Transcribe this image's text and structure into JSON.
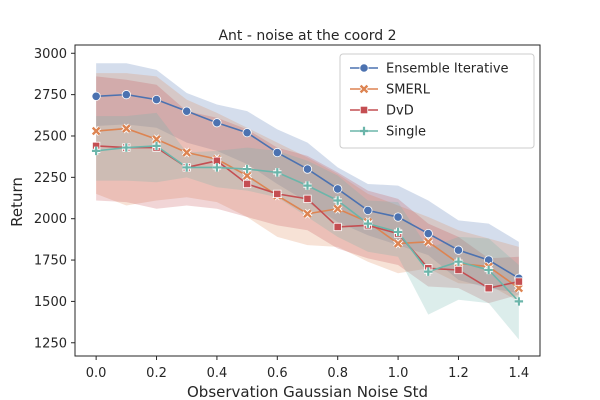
{
  "chart_data": {
    "type": "line",
    "title": "Ant - noise at the coord 2",
    "xlabel": "Observation Gaussian Noise Std",
    "ylabel": "Return",
    "xlim": [
      -0.07,
      1.47
    ],
    "ylim": [
      1170,
      3050
    ],
    "xticks": [
      0.0,
      0.2,
      0.4,
      0.6,
      0.8,
      1.0,
      1.2,
      1.4
    ],
    "yticks": [
      1250,
      1500,
      1750,
      2000,
      2250,
      2500,
      2750,
      3000
    ],
    "grid": false,
    "legend_position": "top-right",
    "x": [
      0.0,
      0.1,
      0.2,
      0.3,
      0.4,
      0.5,
      0.6,
      0.7,
      0.8,
      0.9,
      1.0,
      1.1,
      1.2,
      1.3,
      1.4
    ],
    "series": [
      {
        "name": "Ensemble Iterative",
        "color": "#4c72b0",
        "marker": "circle",
        "values": [
          2740,
          2750,
          2720,
          2650,
          2580,
          2520,
          2400,
          2300,
          2180,
          2050,
          2010,
          1910,
          1810,
          1750,
          1640
        ],
        "lower": [
          2560,
          2570,
          2550,
          2460,
          2410,
          2330,
          2210,
          2100,
          1980,
          1900,
          1840,
          1780,
          1630,
          1580,
          1550
        ],
        "upper": [
          2940,
          2940,
          2900,
          2760,
          2690,
          2650,
          2540,
          2460,
          2310,
          2210,
          2200,
          2110,
          1990,
          1970,
          1860
        ]
      },
      {
        "name": "SMERL",
        "color": "#dd8452",
        "marker": "x",
        "values": [
          2530,
          2545,
          2480,
          2400,
          2360,
          2260,
          2140,
          2030,
          2060,
          1980,
          1850,
          1860,
          1730,
          1710,
          1580
        ],
        "lower": [
          2150,
          2080,
          2110,
          2130,
          2100,
          2010,
          1890,
          1840,
          1830,
          1740,
          1670,
          1700,
          1610,
          1600,
          1500
        ],
        "upper": [
          2880,
          2880,
          2860,
          2720,
          2640,
          2550,
          2460,
          2370,
          2270,
          2150,
          2080,
          2010,
          1930,
          1880,
          1830
        ]
      },
      {
        "name": "DvD",
        "color": "#c44e52",
        "marker": "square",
        "values": [
          2440,
          2430,
          2430,
          2310,
          2350,
          2210,
          2150,
          2120,
          1950,
          1960,
          1910,
          1700,
          1690,
          1580,
          1620
        ],
        "lower": [
          2110,
          2100,
          2060,
          2080,
          2060,
          2010,
          1960,
          1930,
          1820,
          1760,
          1720,
          1590,
          1580,
          1490,
          1540
        ],
        "upper": [
          2860,
          2840,
          2810,
          2650,
          2610,
          2540,
          2430,
          2380,
          2280,
          2170,
          2120,
          1970,
          1890,
          1760,
          1770
        ]
      },
      {
        "name": "Single",
        "color": "#6bb5aa",
        "marker": "plus",
        "values": [
          2410,
          2430,
          2440,
          2310,
          2310,
          2300,
          2280,
          2200,
          2110,
          1970,
          1920,
          1680,
          1740,
          1690,
          1500
        ],
        "lower": [
          2230,
          2230,
          2220,
          2250,
          2190,
          2170,
          2130,
          2010,
          1890,
          1800,
          1770,
          1420,
          1510,
          1490,
          1270
        ],
        "upper": [
          2620,
          2620,
          2640,
          2400,
          2410,
          2430,
          2410,
          2350,
          2260,
          2110,
          2100,
          1820,
          1890,
          1880,
          1720
        ]
      }
    ]
  }
}
